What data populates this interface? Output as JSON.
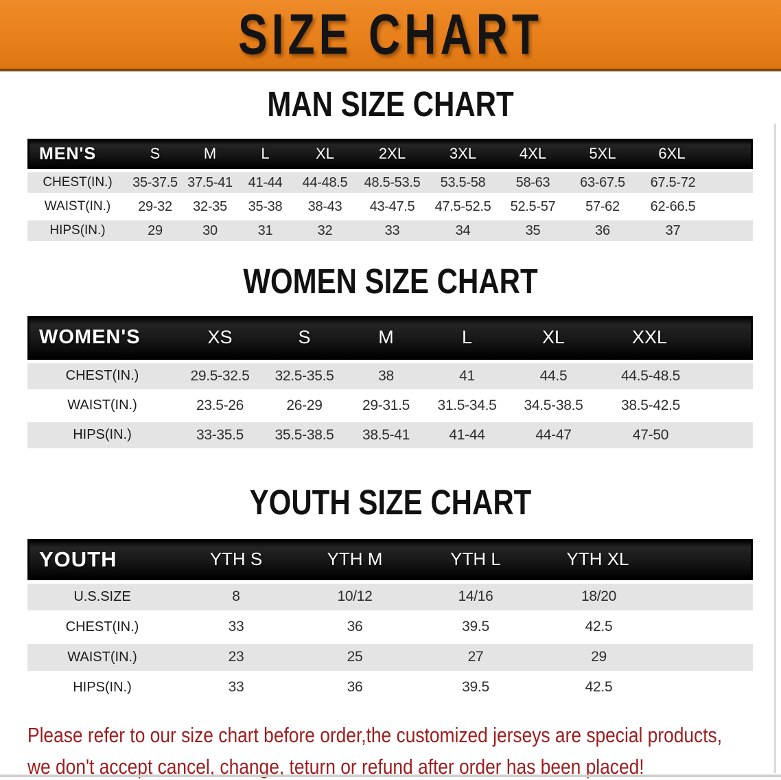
{
  "banner": {
    "title": "SIZE CHART"
  },
  "sections": [
    {
      "id": "men",
      "heading": "MAN SIZE CHART",
      "band_label": "MEN'S",
      "sizes": [
        "S",
        "M",
        "L",
        "XL",
        "2XL",
        "3XL",
        "4XL",
        "5XL",
        "6XL"
      ],
      "rows": [
        {
          "label": "CHEST(IN.)",
          "values": [
            "35-37.5",
            "37.5-41",
            "41-44",
            "44-48.5",
            "48.5-53.5",
            "53.5-58",
            "58-63",
            "63-67.5",
            "67.5-72"
          ]
        },
        {
          "label": "WAIST(IN.)",
          "values": [
            "29-32",
            "32-35",
            "35-38",
            "38-43",
            "43-47.5",
            "47.5-52.5",
            "52.5-57",
            "57-62",
            "62-66.5"
          ]
        },
        {
          "label": "HIPS(IN.)",
          "values": [
            "29",
            "30",
            "31",
            "32",
            "33",
            "34",
            "35",
            "36",
            "37"
          ]
        }
      ]
    },
    {
      "id": "women",
      "heading": "WOMEN SIZE CHART",
      "band_label": "WOMEN'S",
      "sizes": [
        "XS",
        "S",
        "M",
        "L",
        "XL",
        "XXL"
      ],
      "rows": [
        {
          "label": "CHEST(IN.)",
          "values": [
            "29.5-32.5",
            "32.5-35.5",
            "38",
            "41",
            "44.5",
            "44.5-48.5"
          ]
        },
        {
          "label": "WAIST(IN.)",
          "values": [
            "23.5-26",
            "26-29",
            "29-31.5",
            "31.5-34.5",
            "34.5-38.5",
            "38.5-42.5"
          ]
        },
        {
          "label": "HIPS(IN.)",
          "values": [
            "33-35.5",
            "35.5-38.5",
            "38.5-41",
            "41-44",
            "44-47",
            "47-50"
          ]
        }
      ]
    },
    {
      "id": "youth",
      "heading": "YOUTH SIZE CHART",
      "band_label": "YOUTH",
      "sizes": [
        "YTH S",
        "YTH M",
        "YTH L",
        "YTH XL"
      ],
      "rows": [
        {
          "label": "U.S.SIZE",
          "values": [
            "8",
            "10/12",
            "14/16",
            "18/20"
          ]
        },
        {
          "label": "CHEST(IN.)",
          "values": [
            "33",
            "36",
            "39.5",
            "42.5"
          ]
        },
        {
          "label": "WAIST(IN.)",
          "values": [
            "23",
            "25",
            "27",
            "29"
          ]
        },
        {
          "label": "HIPS(IN.)",
          "values": [
            "33",
            "36",
            "39.5",
            "42.5"
          ]
        }
      ]
    }
  ],
  "disclaimer": {
    "line1": "Please refer to our size chart before order,the customized jerseys are special products,",
    "line2": "we don't accept cancel, change, teturn or refund after order has been placed!"
  },
  "colors": {
    "banner_bg": "#e8801b",
    "banner_edge": "#7d4a0e",
    "band_bg": "#171717",
    "row_alt": "#e4e4e4",
    "disclaimer": "#9e1c1c",
    "heading": "#111111"
  }
}
